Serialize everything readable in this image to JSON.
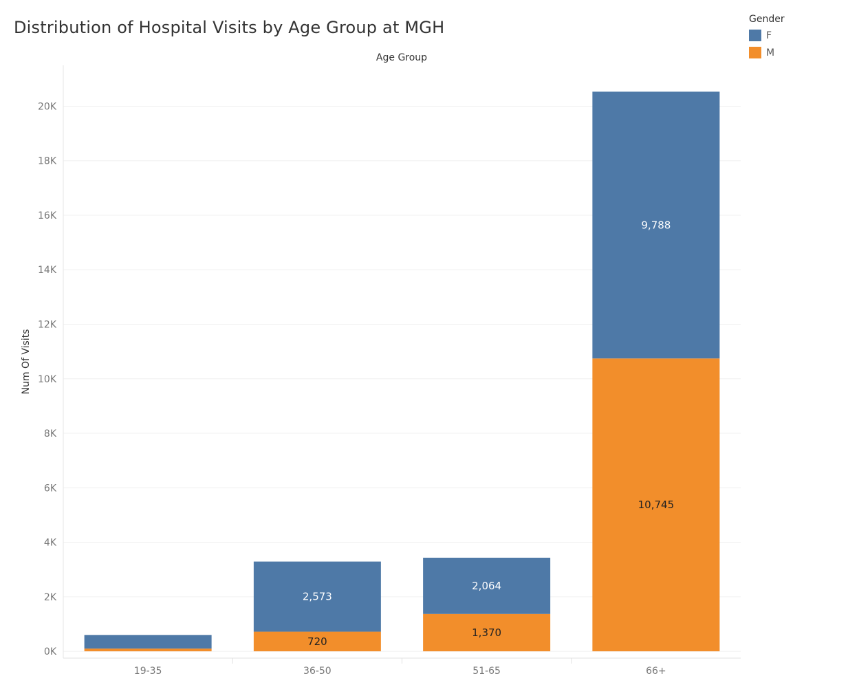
{
  "chart_data": {
    "type": "bar",
    "stacked": true,
    "title": "Distribution of Hospital Visits by Age Group at MGH",
    "xlabel": "Age Group",
    "ylabel": "Num Of Visits",
    "categories": [
      "19-35",
      "36-50",
      "51-65",
      "66+"
    ],
    "series": [
      {
        "name": "M",
        "color": "#f28e2b",
        "values": [
          100,
          720,
          1370,
          10745
        ],
        "labels": [
          "",
          "720",
          "1,370",
          "10,745"
        ]
      },
      {
        "name": "F",
        "color": "#4e79a7",
        "values": [
          500,
          2573,
          2064,
          9788
        ],
        "labels": [
          "",
          "2,573",
          "2,064",
          "9,788"
        ]
      }
    ],
    "yticks": [
      0,
      2000,
      4000,
      6000,
      8000,
      10000,
      12000,
      14000,
      16000,
      18000,
      20000
    ],
    "ytick_labels": [
      "0K",
      "2K",
      "4K",
      "6K",
      "8K",
      "10K",
      "12K",
      "14K",
      "16K",
      "18K",
      "20K"
    ],
    "ylim": [
      -250,
      21500
    ],
    "grid": true,
    "legend": {
      "title": "Gender",
      "position": "top-right"
    }
  }
}
